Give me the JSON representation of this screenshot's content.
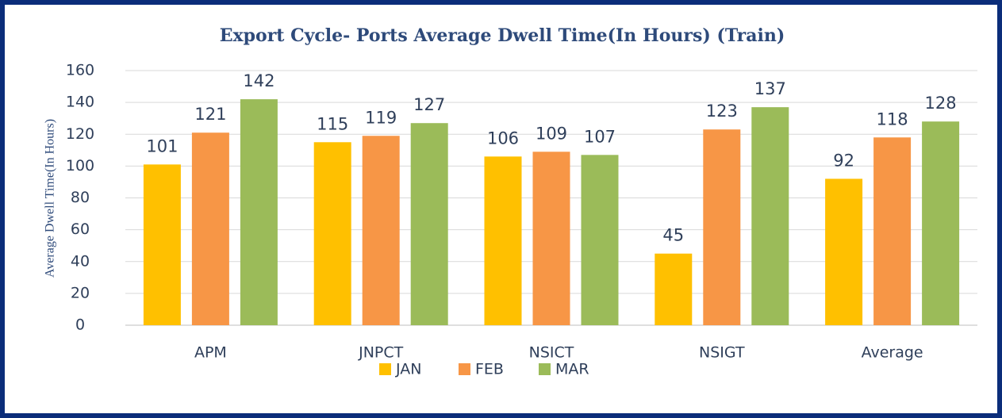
{
  "chart_data": {
    "type": "bar",
    "title": "Export Cycle- Ports Average Dwell Time(In Hours) (Train)",
    "y_label": "Average Dwell Time(In Hours)",
    "categories": [
      "APM",
      "JNPCT",
      "NSICT",
      "NSIGT",
      "Average"
    ],
    "series": [
      {
        "name": "JAN",
        "color": "#FFC000",
        "values": [
          101,
          115,
          106,
          45,
          92
        ]
      },
      {
        "name": "FEB",
        "color": "#F79646",
        "values": [
          121,
          119,
          109,
          123,
          118
        ]
      },
      {
        "name": "MAR",
        "color": "#9BBB59",
        "values": [
          142,
          127,
          107,
          137,
          128
        ]
      }
    ],
    "ylim": [
      0,
      160
    ],
    "yticks": [
      0,
      20,
      40,
      60,
      80,
      100,
      120,
      140,
      160
    ],
    "grid": true,
    "legend": "bottom"
  }
}
